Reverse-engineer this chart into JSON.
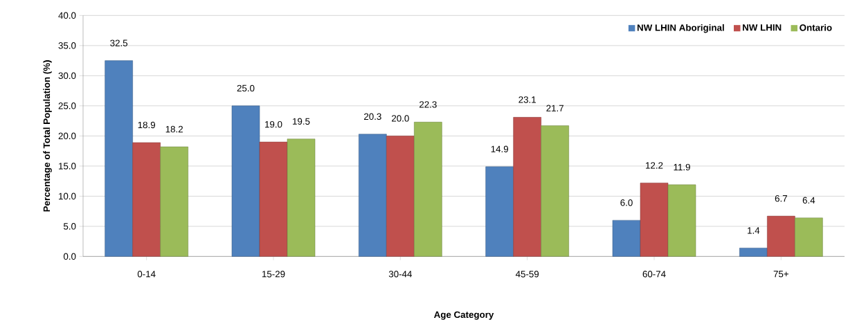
{
  "chart_data": {
    "type": "bar",
    "xlabel": "Age Category",
    "ylabel": "Percentage of Total Population (%)",
    "categories": [
      "0-14",
      "15-29",
      "30-44",
      "45-59",
      "60-74",
      "75+"
    ],
    "series": [
      {
        "name": "NW LHIN Aboriginal",
        "color": "#4f81bd",
        "values": [
          32.5,
          25.0,
          20.3,
          14.9,
          6.0,
          1.4
        ],
        "value_labels": [
          "32.5",
          "25.0",
          "20.3",
          "14.9",
          "6.0",
          "1.4"
        ]
      },
      {
        "name": "NW LHIN",
        "color": "#c0504d",
        "values": [
          18.9,
          19.0,
          20.0,
          23.1,
          12.2,
          6.7
        ],
        "value_labels": [
          "18.9",
          "19.0",
          "20.0",
          "23.1",
          "12.2",
          "6.7"
        ]
      },
      {
        "name": "Ontario",
        "color": "#9bbb59",
        "values": [
          18.2,
          19.5,
          22.3,
          21.7,
          11.9,
          6.4
        ],
        "value_labels": [
          "18.2",
          "19.5",
          "22.3",
          "21.7",
          "11.9",
          "6.4"
        ]
      }
    ],
    "ylim": [
      0,
      40
    ],
    "yticks": [
      {
        "value": 0,
        "label": "0.0"
      },
      {
        "value": 5,
        "label": "5.0"
      },
      {
        "value": 10,
        "label": "10.0"
      },
      {
        "value": 15,
        "label": "15.0"
      },
      {
        "value": 20,
        "label": "20.0"
      },
      {
        "value": 25,
        "label": "25.0"
      },
      {
        "value": 30,
        "label": "30.0"
      },
      {
        "value": 35,
        "label": "35.0"
      },
      {
        "value": 40,
        "label": "40.0"
      }
    ],
    "grid": "y",
    "legend": "top right"
  }
}
